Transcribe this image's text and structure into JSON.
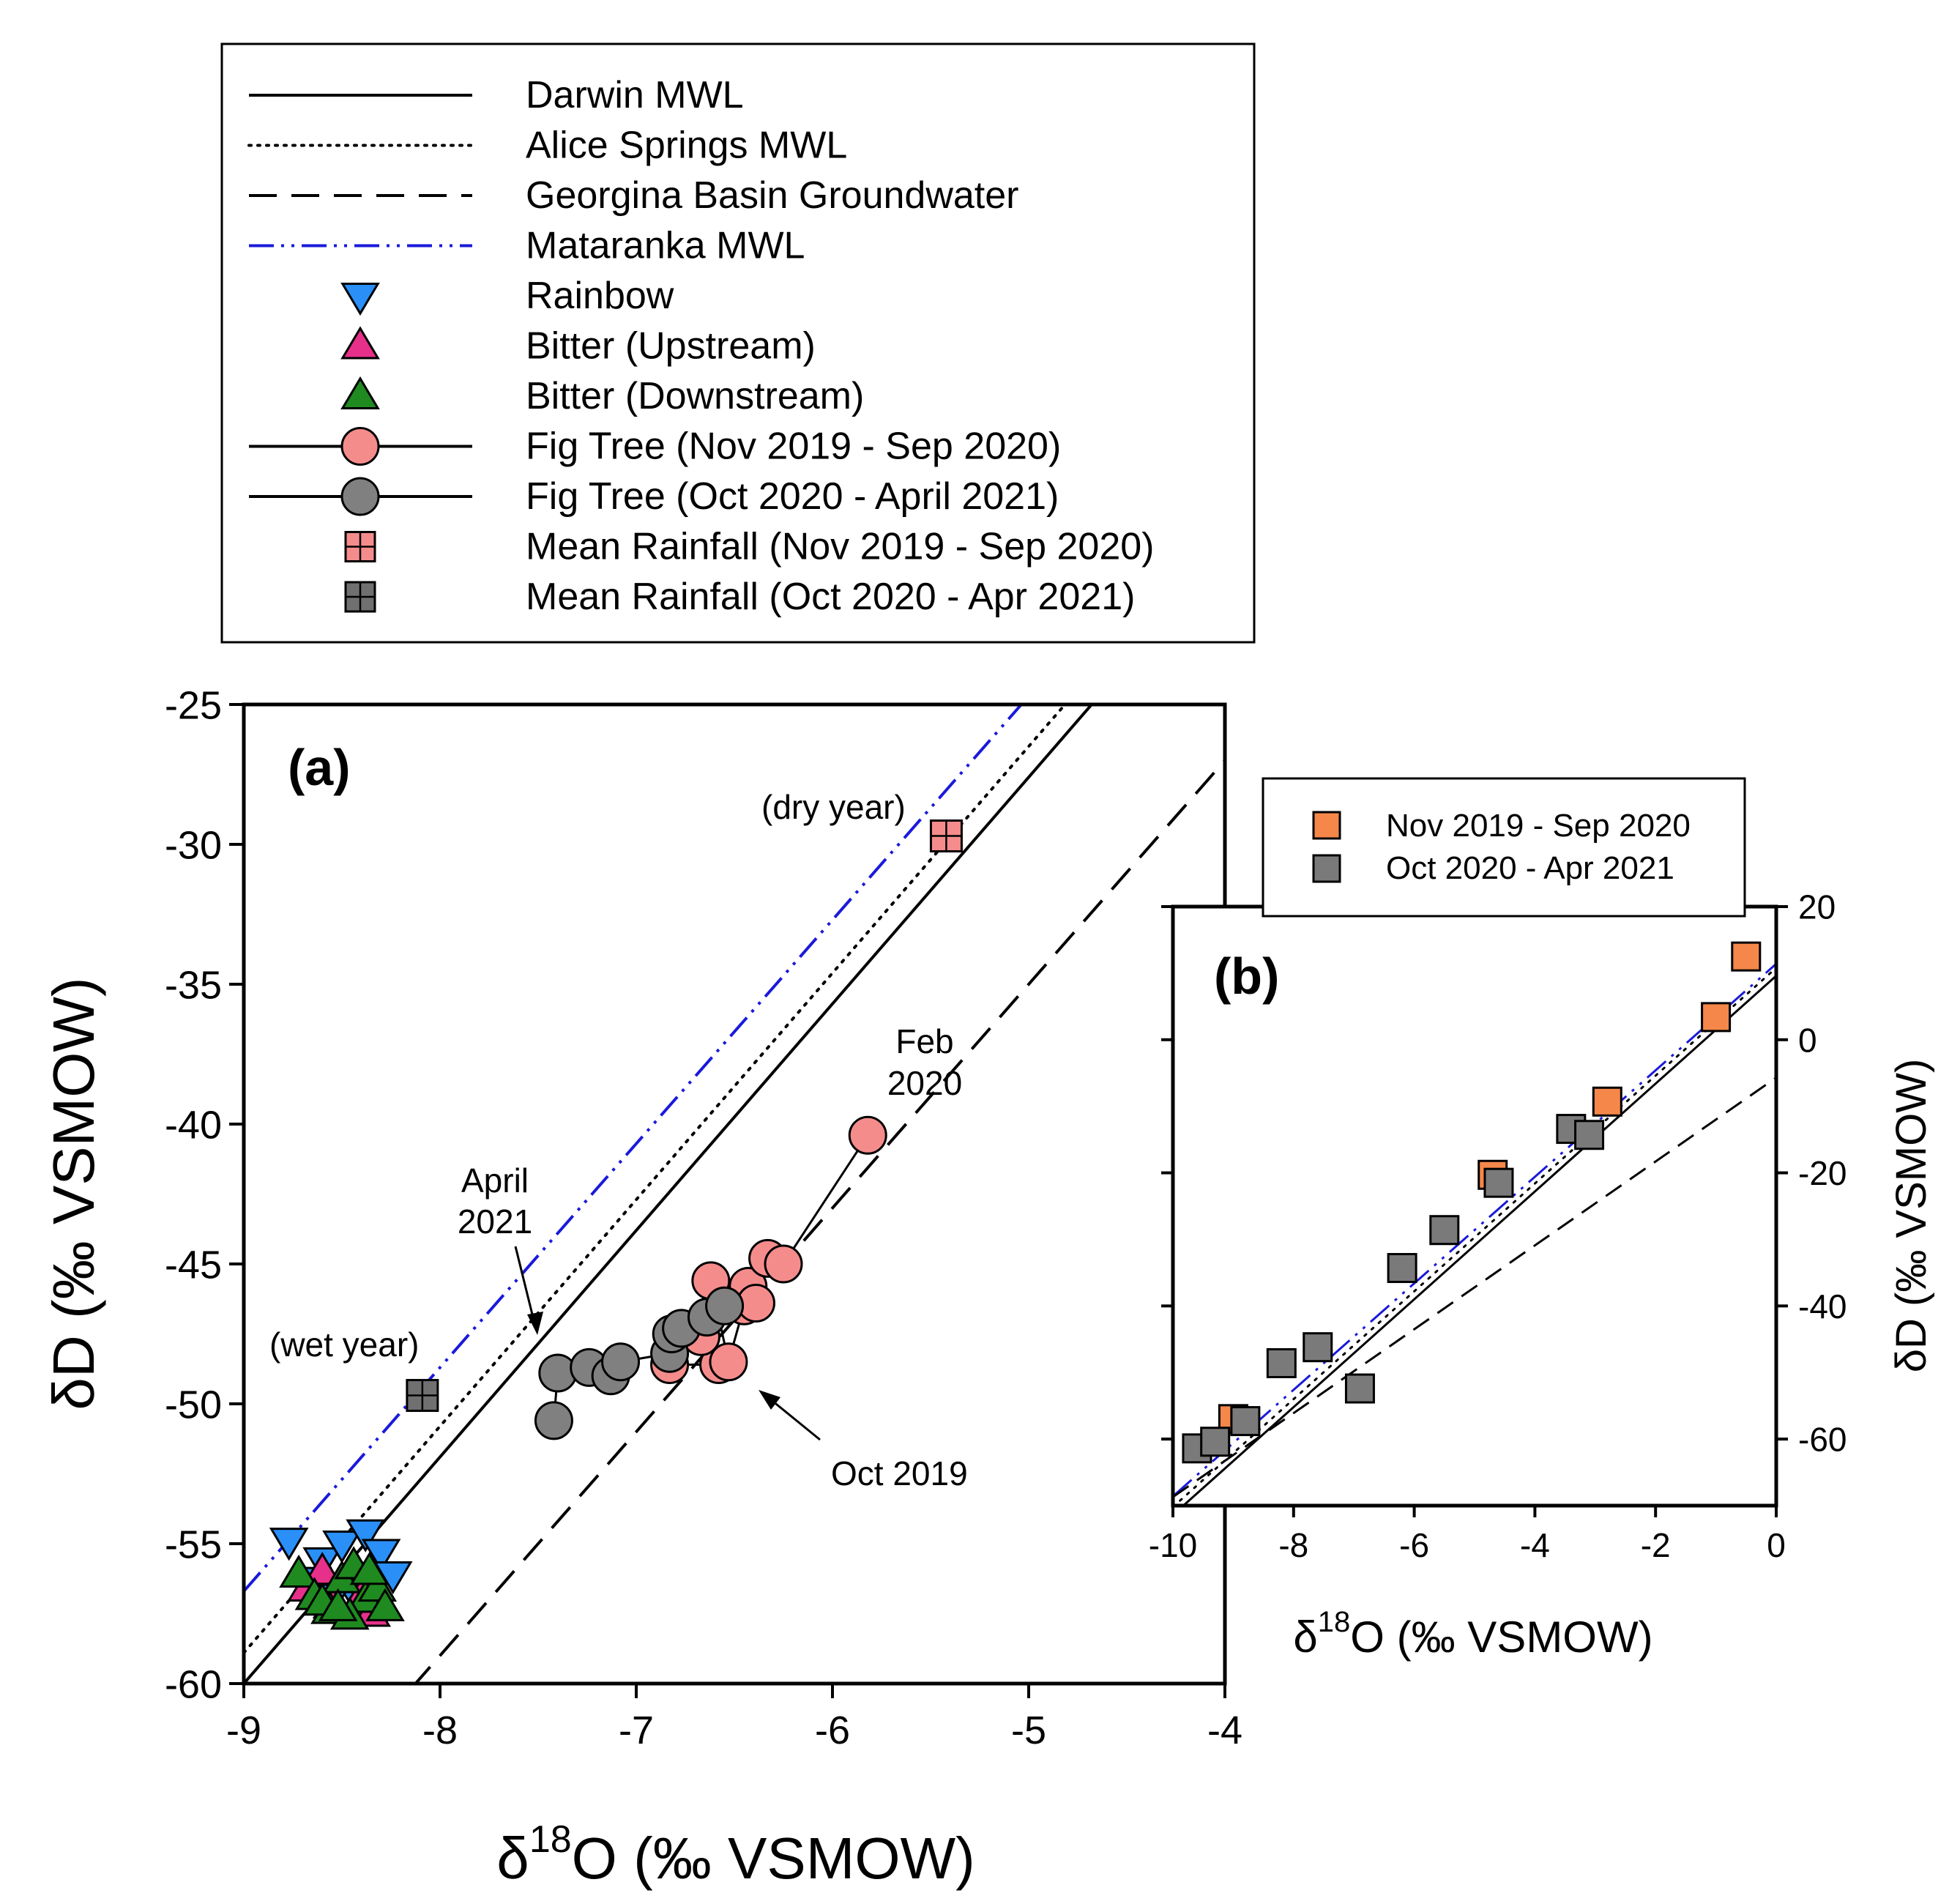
{
  "legend_entries": [
    {
      "label": "Darwin MWL",
      "kind": "line",
      "dash": "solid",
      "color": "#000000"
    },
    {
      "label": "Alice Springs MWL",
      "kind": "line",
      "dash": "dotted",
      "color": "#000000"
    },
    {
      "label": "Georgina Basin Groundwater",
      "kind": "line",
      "dash": "dashed",
      "color": "#000000"
    },
    {
      "label": "Mataranka MWL",
      "kind": "line",
      "dash": "dashdotdot",
      "color": "#1a1adb"
    },
    {
      "label": "Rainbow",
      "kind": "marker",
      "marker": "triangle-down",
      "color": "#2a8ff7"
    },
    {
      "label": "Bitter (Upstream)",
      "kind": "marker",
      "marker": "triangle-up",
      "color": "#e6308a"
    },
    {
      "label": "Bitter (Downstream)",
      "kind": "marker",
      "marker": "triangle-up",
      "color": "#1f8a1f"
    },
    {
      "label": "Fig Tree (Nov 2019 - Sep 2020)",
      "kind": "line-marker",
      "marker": "circle",
      "color": "#f58c8c"
    },
    {
      "label": "Fig Tree (Oct 2020 - April 2021)",
      "kind": "line-marker",
      "marker": "circle",
      "color": "#808080"
    },
    {
      "label": "Mean Rainfall (Nov 2019 - Sep 2020)",
      "kind": "marker",
      "marker": "square-cross",
      "color": "#f58c8c"
    },
    {
      "label": "Mean Rainfall (Oct 2020 - Apr 2021)",
      "kind": "marker",
      "marker": "square-cross",
      "color": "#707070"
    }
  ],
  "chart_data": [
    {
      "id": "a",
      "type": "scatter",
      "panel_label": "(a)",
      "xlabel_prefix": "δ",
      "xlabel_sup": "18",
      "xlabel_rest": "O (‰ VSMOW)",
      "ylabel": "δD (‰ VSMOW)",
      "xlim": [
        -9,
        -4
      ],
      "ylim": [
        -60,
        -25
      ],
      "xticks": [
        -9,
        -8,
        -7,
        -6,
        -5,
        -4
      ],
      "yticks": [
        -60,
        -55,
        -50,
        -45,
        -40,
        -35,
        -30,
        -25
      ],
      "lines": [
        {
          "name": "Darwin MWL",
          "slope": 8.1,
          "intercept": 12.9,
          "dash": "solid",
          "color": "#000000"
        },
        {
          "name": "Alice Springs MWL",
          "slope": 8.1,
          "intercept": 14.0,
          "dash": "dotted",
          "color": "#000000"
        },
        {
          "name": "Mataranka MWL",
          "slope": 8.0,
          "intercept": 15.3,
          "dash": "dashdotdot",
          "color": "#1a1adb"
        },
        {
          "name": "Georgina Basin Groundwater",
          "slope": 8.0,
          "intercept": 5.0,
          "dash": "dashed",
          "color": "#000000"
        }
      ],
      "series": [
        {
          "name": "Rainbow",
          "marker": "triangle-down",
          "color": "#2a8ff7",
          "x": [
            -8.77,
            -8.6,
            -8.5,
            -8.38,
            -8.3,
            -8.24,
            -8.45,
            -8.55,
            -8.65
          ],
          "y": [
            -54.9,
            -55.6,
            -55.0,
            -54.6,
            -55.3,
            -56.1,
            -56.6,
            -56.9,
            -56.3
          ]
        },
        {
          "name": "Bitter (Upstream)",
          "marker": "triangle-up",
          "color": "#e6308a",
          "x": [
            -8.68,
            -8.55,
            -8.42,
            -8.35,
            -8.6,
            -8.4
          ],
          "y": [
            -56.6,
            -57.2,
            -56.2,
            -57.5,
            -56.0,
            -56.9
          ]
        },
        {
          "name": "Bitter (Downstream)",
          "marker": "triangle-up",
          "color": "#1f8a1f",
          "x": [
            -8.72,
            -8.64,
            -8.56,
            -8.5,
            -8.44,
            -8.38,
            -8.32,
            -8.28,
            -8.46,
            -8.36,
            -8.6,
            -8.52
          ],
          "y": [
            -56.1,
            -56.9,
            -57.4,
            -56.3,
            -55.8,
            -57.0,
            -56.6,
            -57.3,
            -57.6,
            -56.0,
            -57.1,
            -57.3
          ]
        },
        {
          "name": "Fig Tree (Nov 2019 - Sep 2020)",
          "marker": "circle",
          "color": "#f58c8c",
          "connected": true,
          "x": [
            -6.58,
            -6.83,
            -6.67,
            -6.62,
            -6.53,
            -6.45,
            -6.43,
            -6.39,
            -6.33,
            -6.25,
            -5.82
          ],
          "y": [
            -48.6,
            -48.6,
            -47.6,
            -45.6,
            -48.5,
            -46.5,
            -45.8,
            -46.4,
            -44.8,
            -45.0,
            -40.4
          ]
        },
        {
          "name": "Fig Tree (Oct 2020 - April 2021)",
          "marker": "circle",
          "color": "#808080",
          "connected": true,
          "x": [
            -7.42,
            -7.4,
            -7.24,
            -7.13,
            -7.08,
            -6.83,
            -6.82,
            -6.77,
            -6.64,
            -6.55
          ],
          "y": [
            -50.6,
            -48.9,
            -48.7,
            -49.0,
            -48.5,
            -48.2,
            -47.5,
            -47.3,
            -46.9,
            -46.5
          ]
        },
        {
          "name": "Mean Rainfall (Nov 2019 - Sep 2020)",
          "marker": "square-cross",
          "color": "#f58c8c",
          "x": [
            -5.42
          ],
          "y": [
            -29.7
          ]
        },
        {
          "name": "Mean Rainfall (Oct 2020 - Apr 2021)",
          "marker": "square-cross",
          "color": "#707070",
          "x": [
            -8.09
          ],
          "y": [
            -49.7
          ]
        }
      ],
      "annotations": [
        {
          "text": "(dry year)"
        },
        {
          "text": "(wet year)"
        },
        {
          "text": "Feb",
          "line2": "2020"
        },
        {
          "text": "April",
          "line2": "2021"
        },
        {
          "text": "Oct 2019"
        }
      ]
    },
    {
      "id": "b",
      "type": "scatter",
      "panel_label": "(b)",
      "xlabel_prefix": "δ",
      "xlabel_sup": "18",
      "xlabel_rest": "O (‰ VSMOW)",
      "ylabel": "δD (‰ VSMOW)",
      "xlim": [
        -10,
        0
      ],
      "ylim": [
        -70,
        20
      ],
      "xticks": [
        -10,
        -8,
        -6,
        -4,
        -2,
        0
      ],
      "yticks": [
        -60,
        -40,
        -20,
        0,
        20
      ],
      "lines": [
        {
          "name": "Darwin MWL",
          "slope": 8.1,
          "intercept": 9.6,
          "dash": "solid",
          "color": "#000000"
        },
        {
          "name": "Alice Springs MWL",
          "slope": 8.1,
          "intercept": 10.8,
          "dash": "dotted",
          "color": "#000000"
        },
        {
          "name": "Mataranka MWL",
          "slope": 8.0,
          "intercept": 11.4,
          "dash": "dashdotdot",
          "color": "#1a1adb"
        },
        {
          "name": "Georgina Basin Groundwater",
          "slope": 6.3,
          "intercept": -5.7,
          "dash": "dashed",
          "color": "#000000"
        }
      ],
      "legend": [
        "Nov 2019 - Sep 2020",
        "Oct 2020 - Apr 2021"
      ],
      "series": [
        {
          "name": "Nov 2019 - Sep 2020",
          "marker": "square",
          "color": "#f5874a",
          "x": [
            -0.5,
            -1.0,
            -2.8,
            -4.7,
            -9.0
          ],
          "y": [
            12.5,
            3.4,
            -9.3,
            -20.3,
            -57.0
          ]
        },
        {
          "name": "Oct 2020 - Apr 2021",
          "marker": "square",
          "color": "#7a7a7a",
          "x": [
            -9.6,
            -9.3,
            -8.8,
            -8.2,
            -7.6,
            -6.9,
            -6.2,
            -5.5,
            -4.6,
            -3.4,
            -3.1
          ],
          "y": [
            -61.4,
            -60.4,
            -57.3,
            -48.6,
            -46.2,
            -52.4,
            -34.3,
            -28.6,
            -21.5,
            -13.4,
            -14.3
          ]
        }
      ]
    }
  ]
}
